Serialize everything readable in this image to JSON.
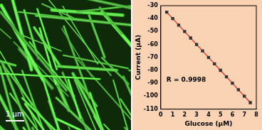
{
  "image": {
    "scale_bar": "1 μm"
  },
  "chart_data": {
    "type": "line",
    "x_label": "Glucose (μM)",
    "y_label": "Current (μA)",
    "annotation": "R = 0.9998",
    "x": [
      0.5,
      1,
      1.5,
      2,
      2.5,
      3,
      3.5,
      4,
      4.5,
      5,
      5.5,
      6,
      6.5,
      7,
      7.5
    ],
    "series": [
      {
        "name": "Current",
        "color": "#e8231c",
        "marker": "square",
        "values": [
          -35,
          -40,
          -45,
          -50,
          -55,
          -60,
          -65,
          -70,
          -75,
          -80,
          -85,
          -90,
          -95,
          -100,
          -105
        ]
      }
    ],
    "xlim": [
      0,
      8
    ],
    "xticks": [
      0,
      1,
      2,
      3,
      4,
      5,
      6,
      7,
      8
    ],
    "ylim": [
      -110,
      -30
    ],
    "yticks": [
      -30,
      -40,
      -50,
      -60,
      -70,
      -80,
      -90,
      -100,
      -110
    ],
    "grid": false
  }
}
